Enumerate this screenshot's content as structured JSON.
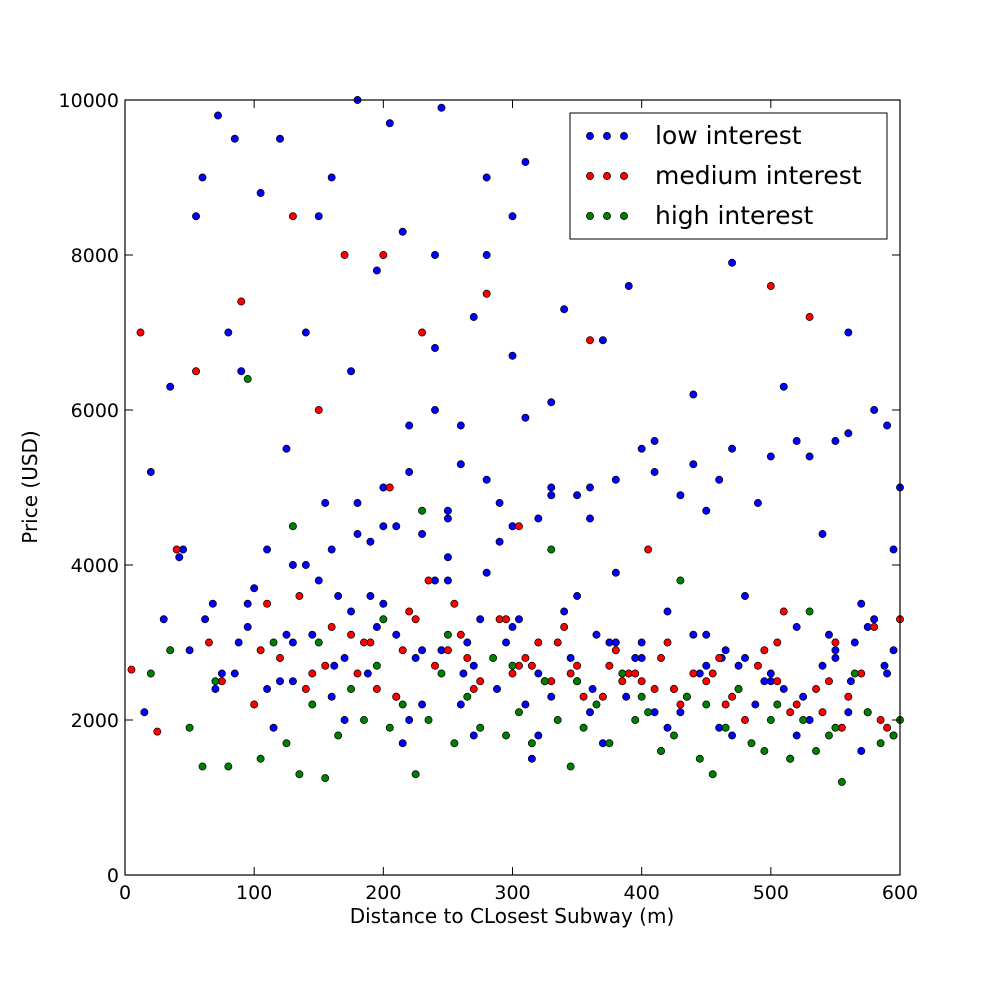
{
  "chart_data": {
    "type": "scatter",
    "title": "",
    "xlabel": "Distance to CLosest Subway (m)",
    "ylabel": "Price (USD)",
    "xlim": [
      0,
      600
    ],
    "ylim": [
      0,
      10000
    ],
    "x_ticks": [
      0,
      100,
      200,
      300,
      400,
      500,
      600
    ],
    "y_ticks": [
      0,
      2000,
      4000,
      6000,
      8000,
      10000
    ],
    "x_tick_labels": [
      "0",
      "100",
      "200",
      "300",
      "400",
      "500",
      "600"
    ],
    "y_tick_labels": [
      "0",
      "2000",
      "4000",
      "6000",
      "8000",
      "10000"
    ],
    "grid": false,
    "legend": {
      "position": "top-right",
      "entries": [
        "low interest",
        "medium interest",
        "high interest"
      ]
    },
    "series": [
      {
        "name": "low interest",
        "color": "#0000ff",
        "x": [
          20,
          35,
          42,
          55,
          60,
          68,
          72,
          80,
          85,
          90,
          95,
          105,
          110,
          120,
          125,
          130,
          140,
          150,
          155,
          160,
          170,
          175,
          180,
          190,
          195,
          200,
          205,
          210,
          215,
          220,
          230,
          240,
          245,
          250,
          260,
          270,
          280,
          290,
          300,
          305,
          310,
          320,
          330,
          340,
          350,
          360,
          370,
          380,
          390,
          400,
          410,
          420,
          430,
          440,
          450,
          460,
          470,
          480,
          490,
          500,
          510,
          520,
          530,
          540,
          550,
          560,
          570,
          580,
          590,
          595,
          600,
          150,
          250,
          350,
          450,
          550,
          180,
          280,
          380,
          480,
          580,
          100,
          200,
          300,
          400,
          500,
          140,
          240,
          340,
          440,
          540,
          165,
          265,
          365,
          465,
          565,
          75,
          175,
          275,
          375,
          475,
          575,
          45,
          145,
          245,
          345,
          445,
          545,
          95,
          195,
          295,
          395,
          495,
          595,
          62,
          162,
          262,
          362,
          462,
          562,
          88,
          188,
          288,
          388,
          488,
          588,
          125,
          225,
          325,
          425,
          525,
          50,
          110,
          210,
          310,
          410,
          510,
          85,
          130,
          230,
          330,
          430,
          530,
          160,
          260,
          360,
          460,
          560,
          30,
          120,
          220,
          320,
          420,
          520,
          70,
          170,
          270,
          370,
          470,
          570,
          15,
          115,
          215,
          315,
          415,
          515,
          200,
          300,
          250,
          350,
          220,
          320,
          180,
          280,
          400,
          450,
          240,
          330,
          260,
          310,
          500,
          550,
          270,
          240,
          300,
          280,
          130,
          160,
          190,
          210,
          230,
          250,
          290,
          330,
          360,
          380,
          410,
          440,
          470,
          520,
          560,
          590
        ],
        "y": [
          5200,
          6300,
          4100,
          8500,
          9000,
          3500,
          9800,
          7000,
          9500,
          6500,
          3200,
          8800,
          4200,
          9500,
          5500,
          3000,
          7000,
          8500,
          4800,
          9000,
          2800,
          6500,
          10000,
          3600,
          7800,
          4500,
          9700,
          3100,
          8300,
          5800,
          2900,
          6800,
          9900,
          3800,
          5300,
          2700,
          8000,
          4300,
          6700,
          3300,
          9200,
          2600,
          5000,
          7300,
          2500,
          4600,
          6900,
          3900,
          7600,
          2800,
          5600,
          3400,
          4900,
          6200,
          2700,
          5100,
          7900,
          3600,
          4800,
          2600,
          6300,
          3200,
          5400,
          4400,
          2800,
          7000,
          3500,
          6000,
          2600,
          4200,
          5000,
          3800,
          4100,
          3600,
          3100,
          2900,
          4400,
          3900,
          3000,
          2800,
          3300,
          3700,
          3500,
          3200,
          3000,
          2500,
          4000,
          3800,
          3400,
          3100,
          2700,
          3600,
          3000,
          3100,
          2900,
          3000,
          2600,
          3400,
          3300,
          3000,
          2700,
          3200,
          4200,
          3100,
          2900,
          2800,
          2600,
          3100,
          3500,
          3200,
          3000,
          2800,
          2500,
          2900,
          3300,
          2700,
          2600,
          2400,
          2800,
          2500,
          3000,
          2600,
          2400,
          2300,
          2200,
          2700,
          3100,
          2800,
          2500,
          2400,
          2300,
          2900,
          2400,
          2300,
          2200,
          2100,
          2400,
          2600,
          2500,
          2200,
          2300,
          2100,
          2000,
          2300,
          2200,
          2100,
          1900,
          2100,
          3300,
          2500,
          2000,
          1800,
          1900,
          1800,
          2400,
          2000,
          1800,
          1700,
          1800,
          1600,
          2100,
          1900,
          1700,
          1500,
          1600,
          1500,
          5000,
          4500,
          4700,
          4900,
          5200,
          4600,
          4800,
          5100,
          5500,
          4700,
          6000,
          6100,
          5800,
          5900,
          5400,
          5600,
          7200,
          8000,
          8500,
          9000,
          4000,
          4200,
          4300,
          4500,
          4400,
          4600,
          4800,
          4900,
          5000,
          5100,
          5200,
          5300,
          5500,
          5600,
          5700,
          5800
        ]
      },
      {
        "name": "medium interest",
        "color": "#ff0000",
        "x": [
          5,
          12,
          25,
          40,
          55,
          65,
          75,
          90,
          100,
          110,
          120,
          130,
          140,
          150,
          160,
          170,
          180,
          190,
          200,
          210,
          220,
          230,
          240,
          250,
          260,
          270,
          280,
          290,
          300,
          310,
          320,
          330,
          340,
          350,
          360,
          370,
          380,
          390,
          400,
          410,
          420,
          430,
          440,
          450,
          460,
          470,
          480,
          490,
          500,
          510,
          520,
          530,
          540,
          550,
          560,
          570,
          580,
          590,
          600,
          135,
          175,
          215,
          255,
          295,
          335,
          375,
          415,
          455,
          495,
          535,
          575,
          145,
          185,
          225,
          265,
          305,
          345,
          385,
          425,
          465,
          505,
          545,
          585,
          155,
          195,
          235,
          275,
          315,
          355,
          395,
          435,
          475,
          515,
          555,
          595,
          105,
          205,
          305,
          405,
          505
        ],
        "y": [
          2650,
          7000,
          1850,
          4200,
          6500,
          3000,
          2500,
          7400,
          2200,
          3500,
          2800,
          8500,
          2400,
          6000,
          3200,
          8000,
          2600,
          3000,
          8000,
          2300,
          3400,
          7000,
          2700,
          2900,
          3100,
          2400,
          7500,
          3300,
          2600,
          2800,
          3000,
          2500,
          3200,
          2700,
          6900,
          2300,
          2900,
          2600,
          2500,
          2400,
          3000,
          2200,
          2600,
          2500,
          2800,
          2300,
          2000,
          2700,
          7600,
          3400,
          2200,
          7200,
          2100,
          3000,
          2300,
          2600,
          3200,
          1900,
          3300,
          3600,
          3100,
          2900,
          3500,
          3300,
          3000,
          2700,
          2800,
          2600,
          2900,
          2400,
          2100,
          2600,
          3000,
          3300,
          2800,
          2700,
          2600,
          2500,
          2400,
          2200,
          3000,
          2500,
          2000,
          2700,
          2400,
          3800,
          2500,
          2700,
          2300,
          2600,
          2300,
          2400,
          2100,
          1900,
          1800,
          2900,
          5000,
          4500,
          4200,
          2500
        ]
      },
      {
        "name": "high interest",
        "color": "#008000",
        "x": [
          20,
          35,
          50,
          60,
          70,
          80,
          95,
          105,
          115,
          125,
          135,
          145,
          155,
          165,
          175,
          185,
          195,
          205,
          215,
          225,
          235,
          245,
          255,
          265,
          275,
          285,
          295,
          305,
          315,
          325,
          335,
          345,
          355,
          365,
          375,
          385,
          395,
          405,
          415,
          425,
          435,
          445,
          455,
          465,
          475,
          485,
          495,
          505,
          515,
          525,
          535,
          545,
          555,
          565,
          575,
          585,
          595,
          150,
          200,
          250,
          300,
          350,
          400,
          450,
          500,
          550,
          600,
          130,
          230,
          330,
          430,
          530
        ],
        "y": [
          2600,
          2900,
          1900,
          1400,
          2500,
          1400,
          6400,
          1500,
          3000,
          1700,
          1300,
          2200,
          1250,
          1800,
          2400,
          2000,
          2700,
          1900,
          2200,
          1300,
          2000,
          2600,
          1700,
          2300,
          1900,
          2800,
          1800,
          2100,
          1700,
          2500,
          2000,
          1400,
          1900,
          2200,
          1700,
          2600,
          2000,
          2100,
          1600,
          1800,
          2300,
          1500,
          1300,
          1900,
          2400,
          1700,
          1600,
          2200,
          1500,
          2000,
          1600,
          1800,
          1200,
          2600,
          2100,
          1700,
          1800,
          3000,
          3300,
          3100,
          2700,
          2500,
          2300,
          2200,
          2000,
          1900,
          2000,
          4500,
          4700,
          4200,
          3800,
          3400
        ]
      }
    ]
  }
}
